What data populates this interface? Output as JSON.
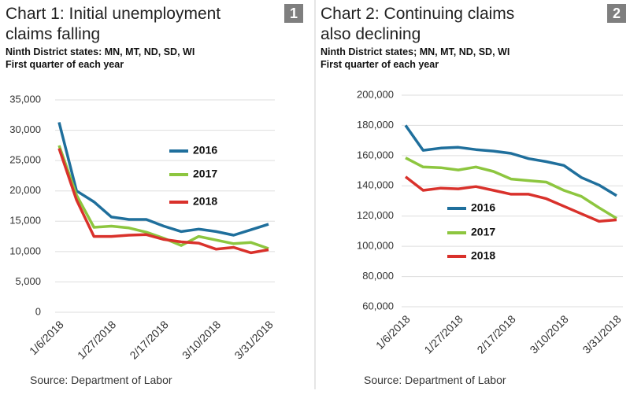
{
  "chart_data": [
    {
      "type": "line",
      "badge": "1",
      "title": "Chart 1: Initial unemployment claims falling",
      "subtitle": [
        "Ninth District states: MN, MT, ND, SD, WI",
        "First quarter of each year"
      ],
      "categories": [
        "1/6/2018",
        null,
        null,
        "1/27/2018",
        null,
        null,
        "2/17/2018",
        null,
        null,
        "3/10/2018",
        null,
        null,
        "3/31/2018"
      ],
      "series": [
        {
          "name": "2016",
          "color": "#1f6f9c",
          "values": [
            31300,
            20000,
            18200,
            15700,
            15300,
            15300,
            14200,
            13300,
            13700,
            13300,
            12700,
            13600,
            14500
          ]
        },
        {
          "name": "2017",
          "color": "#8dc63f",
          "values": [
            27500,
            19300,
            14000,
            14200,
            13900,
            13200,
            12200,
            11000,
            12500,
            11900,
            11300,
            11500,
            10500
          ]
        },
        {
          "name": "2018",
          "color": "#d9312b",
          "values": [
            27000,
            18500,
            12500,
            12500,
            12700,
            12800,
            12000,
            11600,
            11400,
            10400,
            10700,
            9800,
            10300
          ]
        }
      ],
      "ylim": [
        0,
        35000
      ],
      "yticks": [
        0,
        {
          "value": 5000,
          "label": "5,000"
        },
        {
          "value": 10000,
          "label": "10,000"
        },
        {
          "value": 15000,
          "label": "15,000"
        },
        {
          "value": 20000,
          "label": "20,000"
        },
        {
          "value": 25000,
          "label": "25,000"
        },
        {
          "value": 30000,
          "label": "30,000"
        },
        {
          "value": 35000,
          "label": "35,000"
        }
      ],
      "grid": true,
      "source": "Source: Department of Labor"
    },
    {
      "type": "line",
      "badge": "2",
      "title": "Chart 2: Continuing claims also declining",
      "subtitle": [
        "Ninth District states; MN, MT, ND, SD, WI",
        "First quarter of each year"
      ],
      "categories": [
        "1/6/2018",
        null,
        null,
        "1/27/2018",
        null,
        null,
        "2/17/2018",
        null,
        null,
        "3/10/2018",
        null,
        null,
        "3/31/2018"
      ],
      "series": [
        {
          "name": "2016",
          "color": "#1f6f9c",
          "values": [
            180000,
            163500,
            165000,
            165500,
            164000,
            163000,
            161500,
            158000,
            156000,
            153500,
            145500,
            140500,
            133500
          ]
        },
        {
          "name": "2017",
          "color": "#8dc63f",
          "values": [
            158500,
            152500,
            152000,
            150500,
            152500,
            149500,
            144500,
            143500,
            142500,
            137000,
            133000,
            125500,
            118500
          ]
        },
        {
          "name": "2018",
          "color": "#d9312b",
          "values": [
            146000,
            137000,
            138500,
            138000,
            139500,
            137000,
            134500,
            134500,
            131500,
            126500,
            121500,
            116500,
            117500
          ]
        }
      ],
      "ylim": [
        60000,
        200000
      ],
      "yticks": [
        {
          "value": 60000,
          "label": "60,000"
        },
        {
          "value": 80000,
          "label": "80,000"
        },
        {
          "value": 100000,
          "label": "100,000"
        },
        {
          "value": 120000,
          "label": "120,000"
        },
        {
          "value": 140000,
          "label": "140,000"
        },
        {
          "value": 160000,
          "label": "160,000"
        },
        {
          "value": 180000,
          "label": "180,000"
        },
        {
          "value": 200000,
          "label": "200,000"
        }
      ],
      "grid": true,
      "source": "Source: Department of Labor"
    }
  ]
}
